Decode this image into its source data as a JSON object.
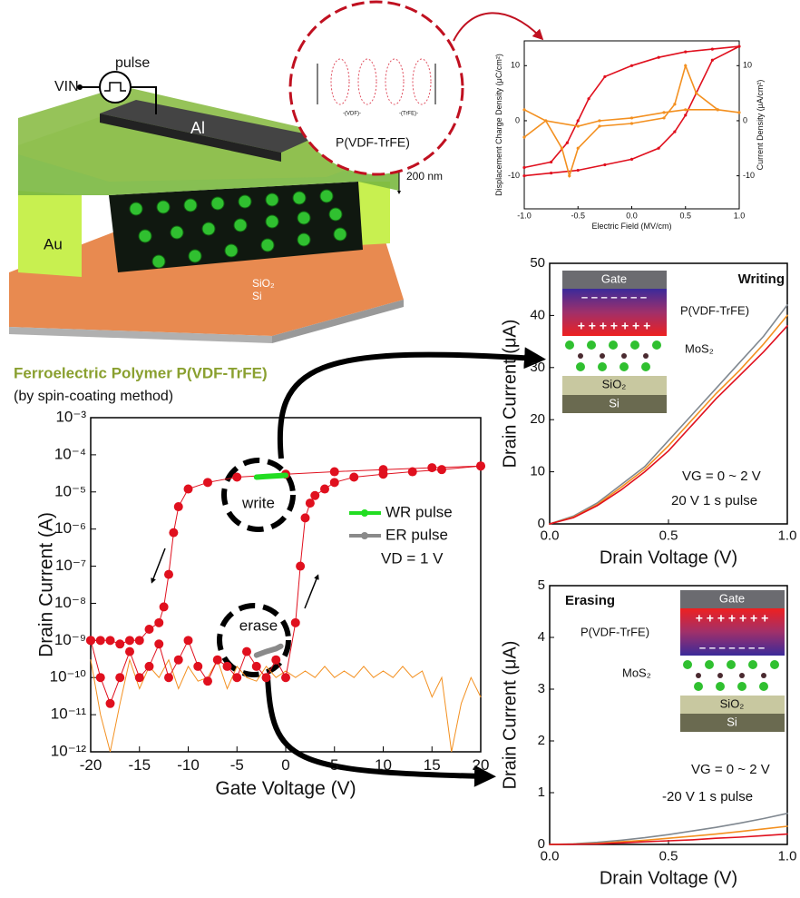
{
  "schematic": {
    "labels": [
      "pulse",
      "VIN",
      "Al",
      "P(VDF-TrFE)",
      "200 nm",
      "Au",
      "SiO₂",
      "Si",
      "-(VDF)-",
      "-(TrFE)-"
    ]
  },
  "chart_data": [
    {
      "type": "line",
      "xlabel": "Electric Field (MV/cm)",
      "ylabel": "Displacement Charge Density (μC/cm²)",
      "y2label": "Current Density (μA/cm²)",
      "xlim": [
        -1,
        1
      ],
      "xticks": [
        {
          "value": -1,
          "label": "-1.0"
        },
        {
          "value": -0.5,
          "label": "-0.5"
        },
        {
          "value": 0,
          "label": "0.0"
        },
        {
          "value": 0.5,
          "label": "0.5"
        },
        {
          "value": 1,
          "label": "1.0"
        }
      ],
      "ylim": [
        -16,
        14.5
      ],
      "yticks": [
        -10,
        0,
        10
      ],
      "y2lim": [
        -16,
        14.5
      ],
      "y2ticks": [
        -10,
        0,
        10
      ],
      "series": [
        {
          "color": "#e0101e",
          "x": [
            -1,
            -0.75,
            -0.5,
            -0.25,
            0,
            0.25,
            0.4,
            0.5,
            0.6,
            0.75,
            1,
            0.75,
            0.5,
            0.25,
            0,
            -0.25,
            -0.4,
            -0.5,
            -0.6,
            -0.75,
            -1
          ],
          "values": [
            -10,
            -9.5,
            -9,
            -8,
            -7,
            -5,
            -2,
            1,
            5,
            11,
            13.5,
            13,
            12.5,
            11.5,
            10,
            8,
            4,
            0,
            -4,
            -7.5,
            -8.5
          ]
        },
        {
          "color": "#f39020",
          "axis": "y2",
          "x": [
            -1,
            -0.8,
            -0.65,
            -0.58,
            -0.5,
            -0.3,
            0,
            0.3,
            0.4,
            0.5,
            0.6,
            0.8,
            1,
            0.8,
            0.5,
            0.3,
            0,
            -0.3,
            -0.5,
            -0.8,
            -1
          ],
          "values": [
            2,
            0,
            -5,
            -10,
            -5,
            -1,
            -0.5,
            0.5,
            3,
            10,
            5,
            2,
            1.5,
            2,
            2,
            1.5,
            0.5,
            0,
            -1,
            0,
            -3
          ]
        }
      ]
    },
    {
      "type": "line",
      "title": "Ferroelectric Polymer P(VDF-TrFE)",
      "subtitle": "(by spin-coating method)",
      "xlabel": "Gate Voltage (V)",
      "ylabel": "Drain Current (A)",
      "log_y": true,
      "xlim": [
        -20,
        20
      ],
      "xticks": [
        -20,
        -15,
        -10,
        -5,
        0,
        5,
        10,
        15,
        20
      ],
      "ylim": [
        1e-12,
        0.001
      ],
      "yticks": [
        {
          "value": 0.001,
          "label": "10⁻³"
        },
        {
          "value": 0.0001,
          "label": "10⁻⁴"
        },
        {
          "value": 1e-05,
          "label": "10⁻⁵"
        },
        {
          "value": 1e-06,
          "label": "10⁻⁶"
        },
        {
          "value": 1e-07,
          "label": "10⁻⁷"
        },
        {
          "value": 1e-08,
          "label": "10⁻⁸"
        },
        {
          "value": 1e-09,
          "label": "10⁻⁹"
        },
        {
          "value": 1e-10,
          "label": "10⁻¹⁰"
        },
        {
          "value": 1e-11,
          "label": "10⁻¹¹"
        },
        {
          "value": 1e-12,
          "label": "10⁻¹²"
        }
      ],
      "annotations": [
        "write",
        "erase",
        "VD = 1 V"
      ],
      "series": [
        {
          "color": "#f39020",
          "x": [
            -20,
            -19,
            -18,
            -17,
            -16,
            -15,
            -14,
            -13,
            -12,
            -11,
            -10,
            -9,
            -8,
            -7,
            -6,
            -5,
            -4,
            -3,
            -2,
            -1,
            0,
            1,
            2,
            3,
            4,
            5,
            6,
            7,
            8,
            9,
            10,
            11,
            12,
            13,
            14,
            15,
            16,
            17,
            18,
            19,
            20
          ],
          "values": [
            3e-10,
            1e-11,
            1e-12,
            2e-11,
            3e-10,
            5e-11,
            2e-10,
            1e-10,
            3e-10,
            5e-11,
            2e-10,
            8e-11,
            1e-10,
            3e-10,
            5e-11,
            2e-10,
            1e-10,
            8e-11,
            2e-10,
            1e-10,
            1.5e-10,
            1e-10,
            1.5e-10,
            1e-10,
            2e-10,
            1e-10,
            1.5e-10,
            1e-10,
            2e-10,
            1e-10,
            1.5e-10,
            1e-10,
            2e-10,
            1e-10,
            1.5e-10,
            3e-11,
            1e-10,
            1e-12,
            2e-11,
            1e-10,
            3e-11
          ]
        },
        {
          "color": "#e0101e",
          "marker": true,
          "x": [
            -20,
            -19,
            -18,
            -17,
            -16,
            -15,
            -14,
            -13,
            -12,
            -11,
            -10,
            -9,
            -8,
            -7,
            -6,
            -5,
            -4,
            -3,
            -2,
            -1,
            0,
            1,
            1.5,
            2,
            2.5,
            3,
            4,
            5,
            7,
            10,
            13,
            16,
            20
          ],
          "values": [
            1e-09,
            1e-10,
            2e-11,
            1e-10,
            5e-10,
            1e-10,
            2e-10,
            8e-10,
            1e-10,
            3e-10,
            1e-09,
            2e-10,
            8e-11,
            3e-10,
            2e-10,
            1e-10,
            5e-10,
            2e-10,
            1e-10,
            3e-10,
            1e-10,
            3e-09,
            1e-07,
            2e-06,
            5e-06,
            8e-06,
            1.2e-05,
            1.8e-05,
            2.5e-05,
            3e-05,
            3.5e-05,
            4e-05,
            5e-05
          ]
        },
        {
          "color": "#e0101e",
          "marker": true,
          "x": [
            20,
            15,
            10,
            5,
            0,
            -5,
            -8,
            -10,
            -11,
            -11.5,
            -12,
            -12.5,
            -13,
            -14,
            -15,
            -16,
            -17,
            -18,
            -19,
            -20
          ],
          "values": [
            5e-05,
            4.5e-05,
            4e-05,
            3.5e-05,
            3e-05,
            2.5e-05,
            1.8e-05,
            1.2e-05,
            4e-06,
            8e-07,
            6e-08,
            8e-09,
            3e-09,
            2e-09,
            1e-09,
            1e-09,
            8e-10,
            1e-09,
            1e-09,
            1e-09
          ]
        },
        {
          "name": "WR pulse",
          "color": "#22dd22",
          "thick": true,
          "x": [
            -3,
            -2,
            -1,
            0
          ],
          "values": [
            2.5e-05,
            2.6e-05,
            2.7e-05,
            2.8e-05
          ]
        },
        {
          "name": "ER pulse",
          "color": "#8a8a8a",
          "thick": true,
          "x": [
            -3,
            -2,
            -1,
            -0.5
          ],
          "values": [
            4e-10,
            5e-10,
            6e-10,
            7e-10
          ]
        }
      ]
    },
    {
      "type": "line",
      "xlabel": "Drain Voltage (V)",
      "ylabel": "Drain Current (μA)",
      "xlim": [
        0,
        1
      ],
      "xticks": [
        {
          "value": 0,
          "label": "0.0"
        },
        {
          "value": 0.5,
          "label": "0.5"
        },
        {
          "value": 1,
          "label": "1.0"
        }
      ],
      "ylim": [
        0,
        50
      ],
      "yticks": [
        0,
        10,
        20,
        30,
        40,
        50
      ],
      "annotations": [
        "Writing",
        "VG = 0 ~ 2 V",
        "20 V 1 s pulse"
      ],
      "inset_labels": [
        "Gate",
        "P(VDF-TrFE)",
        "MoS₂",
        "SiO₂",
        "Si"
      ],
      "x": [
        0,
        0.1,
        0.2,
        0.3,
        0.4,
        0.5,
        0.6,
        0.7,
        0.8,
        0.9,
        1
      ],
      "series": [
        {
          "color": "#808890",
          "values": [
            0,
            1.5,
            4,
            7.5,
            11,
            16,
            21,
            26,
            31,
            36,
            42
          ]
        },
        {
          "color": "#f39020",
          "values": [
            0,
            1.3,
            3.7,
            7,
            10.5,
            15,
            20,
            25,
            29.5,
            34.5,
            40
          ]
        },
        {
          "color": "#e0101e",
          "values": [
            0,
            1.2,
            3.5,
            6.5,
            10,
            14,
            19,
            24,
            28.5,
            33,
            38
          ]
        }
      ]
    },
    {
      "type": "line",
      "xlabel": "Drain Voltage (V)",
      "ylabel": "Drain Current (μA)",
      "xlim": [
        0,
        1
      ],
      "xticks": [
        {
          "value": 0,
          "label": "0.0"
        },
        {
          "value": 0.5,
          "label": "0.5"
        },
        {
          "value": 1,
          "label": "1.0"
        }
      ],
      "ylim": [
        0,
        5
      ],
      "yticks": [
        0,
        1,
        2,
        3,
        4,
        5
      ],
      "annotations": [
        "Erasing",
        "VG = 0 ~ 2 V",
        "-20 V 1 s pulse"
      ],
      "inset_labels": [
        "Gate",
        "P(VDF-TrFE)",
        "MoS₂",
        "SiO₂",
        "Si"
      ],
      "x": [
        0,
        0.1,
        0.2,
        0.3,
        0.4,
        0.5,
        0.6,
        0.7,
        0.8,
        0.9,
        1
      ],
      "series": [
        {
          "color": "#808890",
          "values": [
            0,
            0.01,
            0.04,
            0.08,
            0.13,
            0.19,
            0.26,
            0.33,
            0.41,
            0.5,
            0.6
          ]
        },
        {
          "color": "#f39020",
          "values": [
            0,
            0.005,
            0.02,
            0.05,
            0.08,
            0.12,
            0.16,
            0.2,
            0.25,
            0.3,
            0.35
          ]
        },
        {
          "color": "#e0101e",
          "values": [
            0,
            0.003,
            0.01,
            0.03,
            0.05,
            0.07,
            0.09,
            0.12,
            0.14,
            0.17,
            0.2
          ]
        }
      ]
    }
  ]
}
